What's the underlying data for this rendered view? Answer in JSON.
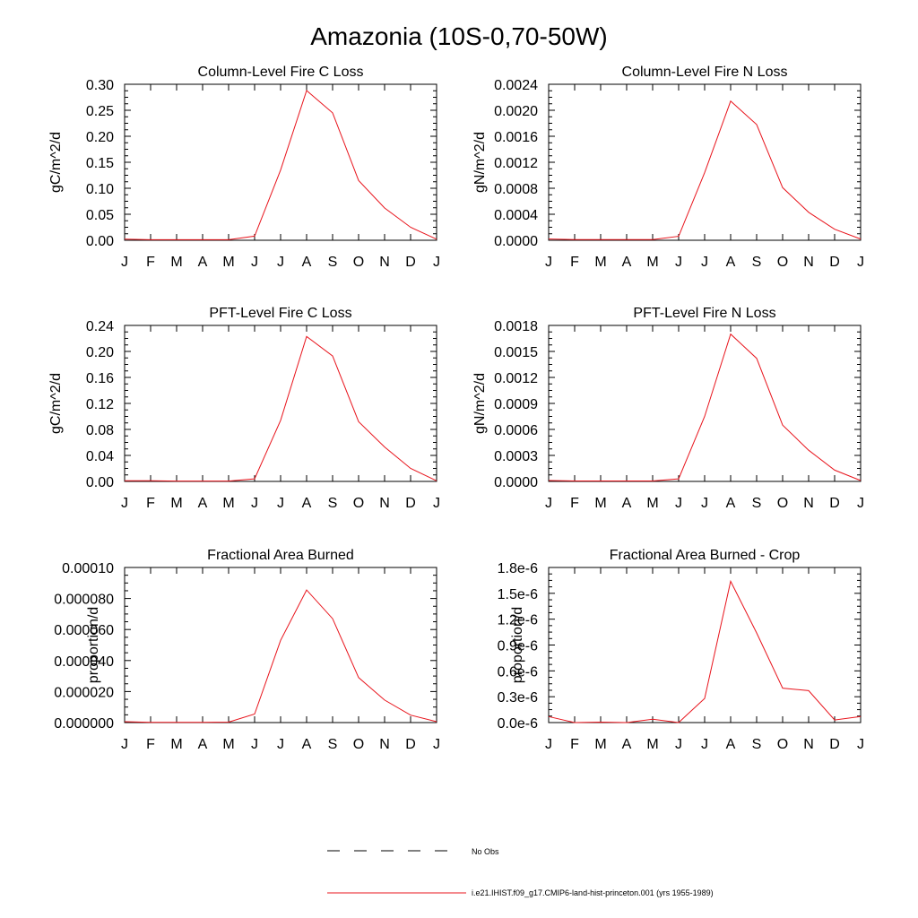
{
  "figure": {
    "title": "Amazonia (10S-0,70-50W)",
    "line_color": "#e8141c",
    "legend": [
      {
        "label": "No Obs",
        "style": "dashed",
        "color": "#000000"
      },
      {
        "label": "i.e21.IHIST.f09_g17.CMIP6-land-hist-princeton.001 (yrs 1955-1989)",
        "style": "solid",
        "color": "#e8141c"
      }
    ]
  },
  "chart_data": [
    {
      "type": "line",
      "title": "Column-Level Fire C Loss",
      "ylabel": "gC/m^2/d",
      "categories": [
        "J",
        "F",
        "M",
        "A",
        "M",
        "J",
        "J",
        "A",
        "S",
        "O",
        "N",
        "D",
        "J"
      ],
      "ylim": [
        0,
        0.3
      ],
      "yticks": [
        "0.00",
        "0.05",
        "0.10",
        "0.15",
        "0.20",
        "0.25",
        "0.30"
      ],
      "series": [
        {
          "values": [
            0.002,
            0.001,
            0.001,
            0.001,
            0.001,
            0.008,
            0.135,
            0.288,
            0.245,
            0.115,
            0.062,
            0.025,
            0.002
          ]
        }
      ]
    },
    {
      "type": "line",
      "title": "Column-Level Fire N Loss",
      "ylabel": "gN/m^2/d",
      "categories": [
        "J",
        "F",
        "M",
        "A",
        "M",
        "J",
        "J",
        "A",
        "S",
        "O",
        "N",
        "D",
        "J"
      ],
      "ylim": [
        0,
        0.0024
      ],
      "yticks": [
        "0.0000",
        "0.0004",
        "0.0008",
        "0.0012",
        "0.0016",
        "0.0020",
        "0.0024"
      ],
      "series": [
        {
          "values": [
            2e-05,
            1e-05,
            1e-05,
            1e-05,
            1e-05,
            6e-05,
            0.00104,
            0.00214,
            0.00178,
            0.00081,
            0.00043,
            0.00017,
            2e-05
          ]
        }
      ]
    },
    {
      "type": "line",
      "title": "PFT-Level Fire C Loss",
      "ylabel": "gC/m^2/d",
      "categories": [
        "J",
        "F",
        "M",
        "A",
        "M",
        "J",
        "J",
        "A",
        "S",
        "O",
        "N",
        "D",
        "J"
      ],
      "ylim": [
        0,
        0.24
      ],
      "yticks": [
        "0.00",
        "0.04",
        "0.08",
        "0.12",
        "0.16",
        "0.20",
        "0.24"
      ],
      "series": [
        {
          "values": [
            0.001,
            0.001,
            0.0005,
            0.0005,
            0.0005,
            0.004,
            0.094,
            0.223,
            0.193,
            0.092,
            0.053,
            0.02,
            0.001
          ]
        }
      ]
    },
    {
      "type": "line",
      "title": "PFT-Level Fire N Loss",
      "ylabel": "gN/m^2/d",
      "categories": [
        "J",
        "F",
        "M",
        "A",
        "M",
        "J",
        "J",
        "A",
        "S",
        "O",
        "N",
        "D",
        "J"
      ],
      "ylim": [
        0,
        0.0018
      ],
      "yticks": [
        "0.0000",
        "0.0003",
        "0.0006",
        "0.0009",
        "0.0012",
        "0.0015",
        "0.0018"
      ],
      "series": [
        {
          "values": [
            1e-05,
            5e-06,
            5e-06,
            5e-06,
            5e-06,
            3e-05,
            0.00075,
            0.0017,
            0.00142,
            0.00065,
            0.00036,
            0.00013,
            1e-05
          ]
        }
      ]
    },
    {
      "type": "line",
      "title": "Fractional Area Burned",
      "ylabel": "proportion/d",
      "categories": [
        "J",
        "F",
        "M",
        "A",
        "M",
        "J",
        "J",
        "A",
        "S",
        "O",
        "N",
        "D",
        "J"
      ],
      "ylim": [
        0,
        0.0001
      ],
      "yticks": [
        "0.000000",
        "0.000020",
        "0.000040",
        "0.000060",
        "0.000080",
        "0.00010"
      ],
      "series": [
        {
          "values": [
            6e-07,
            2e-07,
            2e-07,
            2e-07,
            3e-07,
            5.5e-06,
            5.3e-05,
            8.55e-05,
            6.7e-05,
            2.9e-05,
            1.45e-05,
            4.8e-06,
            6e-07
          ]
        }
      ]
    },
    {
      "type": "line",
      "title": "Fractional Area Burned - Crop",
      "ylabel": "proportion/d",
      "categories": [
        "J",
        "F",
        "M",
        "A",
        "M",
        "J",
        "J",
        "A",
        "S",
        "O",
        "N",
        "D",
        "J"
      ],
      "ylim": [
        0,
        1.8e-06
      ],
      "yticks": [
        "0.0e-6",
        "0.3e-6",
        "0.6e-6",
        "0.9e-6",
        "1.2e-6",
        "1.5e-6",
        "1.8e-6"
      ],
      "series": [
        {
          "values": [
            7e-08,
            0.0,
            5e-09,
            0.0,
            4e-08,
            0.0,
            2.8e-07,
            1.64e-06,
            1.04e-06,
            4e-07,
            3.7e-07,
            3e-08,
            7e-08
          ]
        }
      ]
    }
  ]
}
